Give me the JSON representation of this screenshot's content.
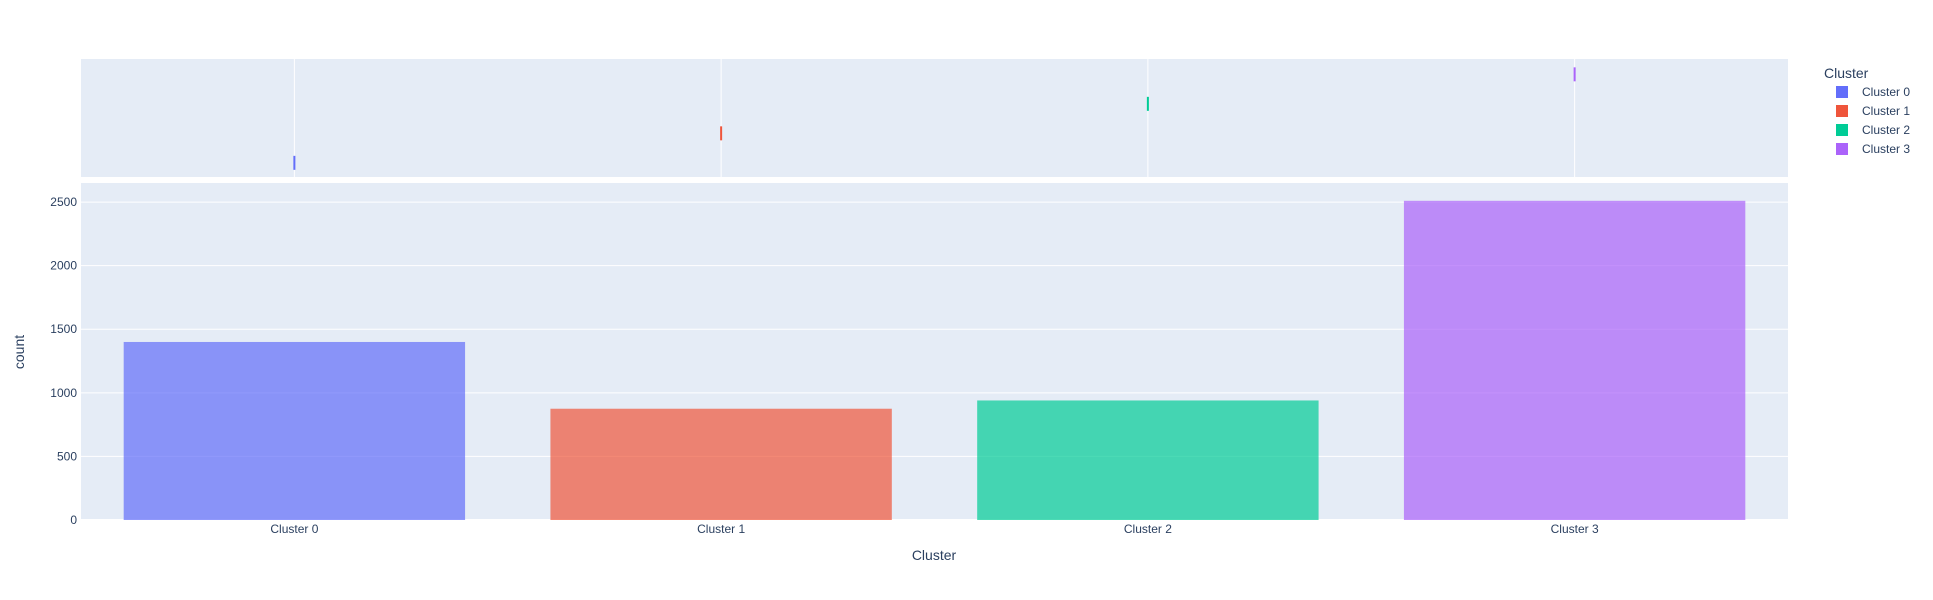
{
  "chart_data": {
    "type": "bar",
    "categories": [
      "Cluster 0",
      "Cluster 1",
      "Cluster 2",
      "Cluster 3"
    ],
    "values": [
      1400,
      875,
      940,
      2510
    ],
    "colors": [
      "#636efa",
      "#EF553B",
      "#00cc96",
      "#ab63fa"
    ],
    "xlabel": "Cluster",
    "ylabel": "count",
    "ylim": [
      0,
      2650
    ],
    "yticks": [
      0,
      500,
      1000,
      1500,
      2000,
      2500
    ],
    "ytick_labels": [
      "0",
      "500",
      "1000",
      "1500",
      "2000",
      "2500"
    ],
    "grid": true,
    "legend": {
      "title": "Cluster",
      "placement": "right",
      "entries": [
        "Cluster 0",
        "Cluster 1",
        "Cluster 2",
        "Cluster 3"
      ]
    },
    "marginal": {
      "type": "rug",
      "position": "top"
    }
  }
}
